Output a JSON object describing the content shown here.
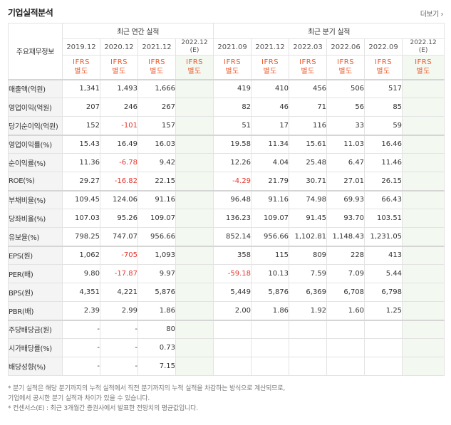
{
  "header": {
    "title": "기업실적분석",
    "more": "더보기"
  },
  "table": {
    "label_header": "주요재무정보",
    "annual_group": "최근 연간 실적",
    "quarter_group": "최근 분기 실적",
    "periods": [
      {
        "label": "2019.12",
        "est": false
      },
      {
        "label": "2020.12",
        "est": false
      },
      {
        "label": "2021.12",
        "est": false
      },
      {
        "label": "2022.12",
        "sub": "(E)",
        "est": true
      },
      {
        "label": "2021.09",
        "est": false
      },
      {
        "label": "2021.12",
        "est": false
      },
      {
        "label": "2022.03",
        "est": false
      },
      {
        "label": "2022.06",
        "est": false
      },
      {
        "label": "2022.09",
        "est": false
      },
      {
        "label": "2022.12",
        "sub": "(E)",
        "est": true
      }
    ],
    "ifrs_label": [
      "IFRS",
      "별도"
    ],
    "rows": [
      {
        "label": "매출액(억원)",
        "values": [
          "1,341",
          "1,493",
          "1,666",
          "",
          "419",
          "410",
          "456",
          "506",
          "517",
          ""
        ]
      },
      {
        "label": "영업이익(억원)",
        "values": [
          "207",
          "246",
          "267",
          "",
          "82",
          "46",
          "71",
          "56",
          "85",
          ""
        ]
      },
      {
        "label": "당기순이익(억원)",
        "values": [
          "152",
          "-101",
          "157",
          "",
          "51",
          "17",
          "116",
          "33",
          "59",
          ""
        ]
      },
      {
        "label": "영업이익률(%)",
        "values": [
          "15.43",
          "16.49",
          "16.03",
          "",
          "19.58",
          "11.34",
          "15.61",
          "11.03",
          "16.46",
          ""
        ]
      },
      {
        "label": "순이익률(%)",
        "values": [
          "11.36",
          "-6.78",
          "9.42",
          "",
          "12.26",
          "4.04",
          "25.48",
          "6.47",
          "11.46",
          ""
        ]
      },
      {
        "label": "ROE(%)",
        "values": [
          "29.27",
          "-16.82",
          "22.15",
          "",
          "-4.29",
          "21.79",
          "30.71",
          "27.01",
          "26.15",
          ""
        ]
      },
      {
        "label": "부채비율(%)",
        "values": [
          "109.45",
          "124.06",
          "91.16",
          "",
          "96.48",
          "91.16",
          "74.98",
          "69.93",
          "66.43",
          ""
        ]
      },
      {
        "label": "당좌비율(%)",
        "values": [
          "107.03",
          "95.26",
          "109.07",
          "",
          "136.23",
          "109.07",
          "91.45",
          "93.70",
          "103.51",
          ""
        ]
      },
      {
        "label": "유보율(%)",
        "values": [
          "798.25",
          "747.07",
          "956.66",
          "",
          "852.14",
          "956.66",
          "1,102.81",
          "1,148.43",
          "1,231.05",
          ""
        ]
      },
      {
        "label": "EPS(원)",
        "values": [
          "1,062",
          "-705",
          "1,093",
          "",
          "358",
          "115",
          "809",
          "228",
          "413",
          ""
        ]
      },
      {
        "label": "PER(배)",
        "values": [
          "9.80",
          "-17.87",
          "9.97",
          "",
          "-59.18",
          "10.13",
          "7.59",
          "7.09",
          "5.44",
          ""
        ]
      },
      {
        "label": "BPS(원)",
        "values": [
          "4,351",
          "4,221",
          "5,876",
          "",
          "5,449",
          "5,876",
          "6,369",
          "6,708",
          "6,798",
          ""
        ]
      },
      {
        "label": "PBR(배)",
        "values": [
          "2.39",
          "2.99",
          "1.86",
          "",
          "2.00",
          "1.86",
          "1.92",
          "1.60",
          "1.25",
          ""
        ]
      },
      {
        "label": "주당배당금(원)",
        "values": [
          "-",
          "-",
          "80",
          "",
          "",
          "",
          "",
          "",
          "",
          ""
        ]
      },
      {
        "label": "시가배당률(%)",
        "values": [
          "-",
          "-",
          "0.73",
          "",
          "",
          "",
          "",
          "",
          "",
          ""
        ]
      },
      {
        "label": "배당성향(%)",
        "values": [
          "-",
          "-",
          "7.15",
          "",
          "",
          "",
          "",
          "",
          "",
          ""
        ]
      }
    ]
  },
  "footnotes": [
    "* 분기 실적은 해당 분기까지의 누적 실적에서 직전 분기까지의 누적 실적을 차감하는 방식으로 계산되므로,",
    "  기업에서 공시한 분기 실적과 차이가 있을 수 있습니다.",
    "* 컨센서스(E) : 최근 3개월간 증권사에서 발표한 전망치의 평균값입니다."
  ],
  "colors": {
    "negative": "#e2372f",
    "ifrs": "#f1592a",
    "estimate_bg": "#f3f8f0",
    "label_bg": "#f4f4f4"
  }
}
